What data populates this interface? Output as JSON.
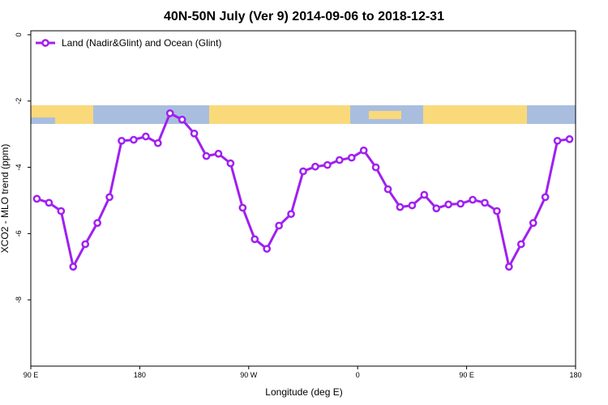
{
  "chart_data": {
    "type": "line",
    "title": "40N-50N July (Ver 9)   2014-09-06 to 2018-12-31",
    "x_label": "Longitude (deg E)",
    "y_label": "XCO2 - MLO trend (ppm)",
    "x": [
      95,
      105,
      115,
      125,
      135,
      145,
      155,
      165,
      175,
      185,
      195,
      205,
      215,
      225,
      235,
      245,
      255,
      265,
      275,
      285,
      295,
      305,
      315,
      325,
      335,
      345,
      355,
      365,
      375,
      385,
      395,
      405,
      415,
      425,
      435,
      445,
      455,
      465,
      475,
      485,
      495,
      505,
      515,
      525,
      535
    ],
    "series": [
      {
        "name": "Land (Nadir&Glint) and Ocean (Glint)",
        "color": "#a020f0",
        "values": [
          -4.95,
          -5.07,
          -5.32,
          -7.0,
          -6.32,
          -5.68,
          -4.9,
          -3.2,
          -3.17,
          -3.07,
          -3.27,
          -2.37,
          -2.56,
          -2.98,
          -3.66,
          -3.59,
          -3.88,
          -5.22,
          -6.17,
          -6.46,
          -5.76,
          -5.41,
          -4.12,
          -3.98,
          -3.93,
          -3.78,
          -3.71,
          -3.49,
          -4.0,
          -4.66,
          -5.2,
          -5.15,
          -4.83,
          -5.24,
          -5.12,
          -5.1,
          -4.98,
          -5.07,
          -5.32,
          -7.0,
          -6.32,
          -5.68,
          -4.9,
          -3.2,
          -3.15
        ]
      }
    ],
    "xlim": [
      90,
      540
    ],
    "xticks": [
      {
        "value": 90,
        "label": "90 E"
      },
      180,
      {
        "value": 270,
        "label": "90 W"
      },
      {
        "value": 360,
        "label": "0"
      },
      {
        "value": 450,
        "label": "90 E"
      },
      {
        "value": 540,
        "label": "180"
      }
    ],
    "ylim": [
      -10,
      0.12
    ],
    "yticks": [
      0,
      -2,
      -4,
      -6,
      -8
    ],
    "legend": "top-left"
  }
}
